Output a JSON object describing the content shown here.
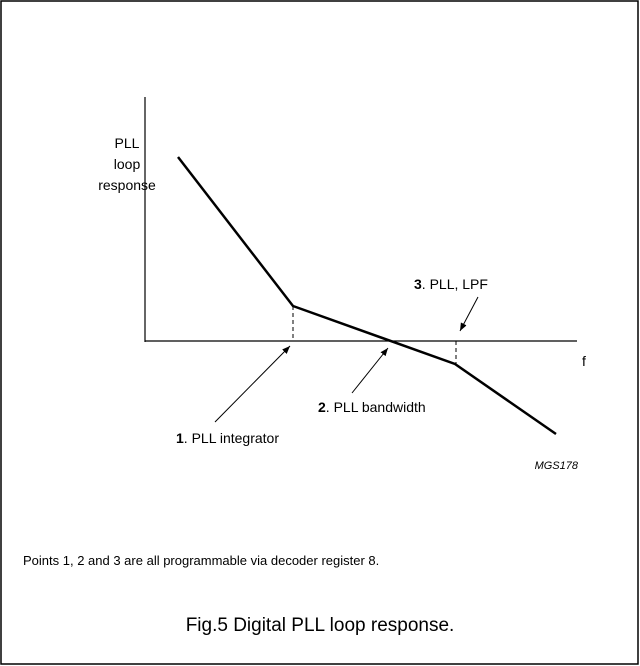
{
  "axis_label": [
    "PLL",
    "loop",
    "response"
  ],
  "x_axis_label": "f",
  "points": [
    {
      "number": "1",
      "text": ". PLL integrator"
    },
    {
      "number": "2",
      "text": ". PLL bandwidth"
    },
    {
      "number": "3",
      "text": ". PLL, LPF"
    }
  ],
  "code": "MGS178",
  "note": "Points 1, 2 and 3 are all programmable via decoder register 8.",
  "caption": "Fig.5  Digital PLL loop response."
}
